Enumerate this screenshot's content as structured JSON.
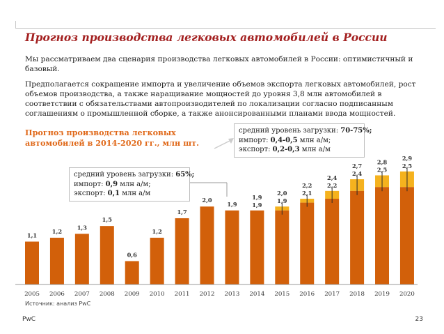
{
  "page": {
    "title": "Прогноз производства легковых автомобилей в России",
    "paragraph1": "Мы рассматриваем два сценария производства легковых автомобилей в России: оптимистичный и базовый.",
    "paragraph2": "Предполагается сокращение импорта и увеличение объемов экспорта легковых автомобилей, рост объемов производства, а также наращивание мощностей до уровня 3,8 млн автомобилей в соответствии с обязательствами автопроизводителей по локализации согласно подписанным соглашениям о промышленной сборке, а также анонсированными планами ввода мощностей.",
    "source": "Источник: анализ PwC",
    "footer_left": "PwC",
    "page_number": "23"
  },
  "callouts": {
    "c1": {
      "line1_prefix": "средний уровень загрузки: ",
      "line1_value": "65%;",
      "line2_prefix": "импорт: ",
      "line2_value": "0,9",
      "line2_suffix": " млн а/м;",
      "line3_prefix": "экспорт: ",
      "line3_value": "0,1",
      "line3_suffix": " млн а/м"
    },
    "c2": {
      "line1_prefix": "средний уровень загрузки: ",
      "line1_value": "70-75%;",
      "line2_prefix": "импорт: ",
      "line2_value": "0,4-0,5",
      "line2_suffix": " млн а/м;",
      "line3_prefix": "экспорт: ",
      "line3_value": "0,2-0,3",
      "line3_suffix": " млн а/м"
    }
  },
  "colors": {
    "base": "#d2600a",
    "optimistic": "#f5b21e",
    "title": "#a32020",
    "chart_title": "#e0691a"
  },
  "chart_data": {
    "type": "bar",
    "title": "Прогноз производства легковых автомобилей в 2014-2020 гг., млн шт.",
    "categories": [
      "2005",
      "2006",
      "2007",
      "2008",
      "2009",
      "2010",
      "2011",
      "2012",
      "2013",
      "2014",
      "2015",
      "2016",
      "2017",
      "2018",
      "2019",
      "2020"
    ],
    "series": [
      {
        "values": [
          1.1,
          1.2,
          1.3,
          1.5,
          0.6,
          1.2,
          1.7,
          2.0,
          1.9,
          1.9,
          1.9,
          2.1,
          2.2,
          2.4,
          2.5,
          2.5
        ]
      },
      {
        "values": [
          null,
          null,
          null,
          null,
          null,
          null,
          null,
          null,
          null,
          1.9,
          2.0,
          2.2,
          2.4,
          2.7,
          2.8,
          2.9
        ]
      }
    ],
    "labels": [
      "1,1",
      "1,2",
      "1,3",
      "1,5",
      "0,6",
      "1,2",
      "1,7",
      "2,0",
      "1,9",
      "1,9",
      "1,9",
      "2,1",
      "2,2",
      "2,4",
      "2,5",
      "2,5"
    ],
    "labels_optimistic": [
      null,
      null,
      null,
      null,
      null,
      null,
      null,
      null,
      null,
      "1,9",
      "2,0",
      "2,2",
      "2,4",
      "2,7",
      "2,8",
      "2,9"
    ],
    "ylim": [
      0,
      3.2
    ],
    "grid": false,
    "legend": "none"
  }
}
